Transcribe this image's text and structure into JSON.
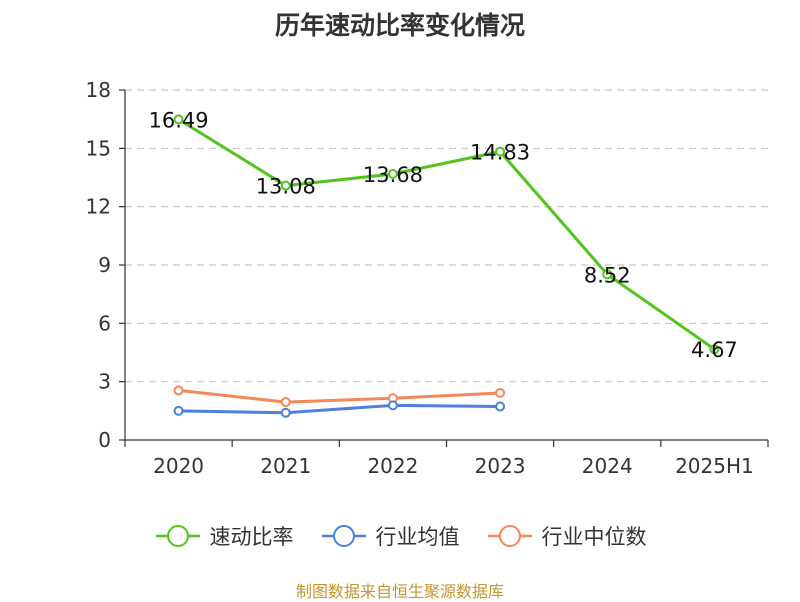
{
  "colors": {
    "speed_ratio": "#52c41a",
    "industry_avg": "#4f7fdc",
    "industry_median": "#f5885b",
    "grid": "#c8c8c8",
    "axis": "#333333",
    "source": "#c8962e"
  },
  "chart_data": {
    "type": "line",
    "title": "历年速动比率变化情况",
    "categories": [
      "2020",
      "2021",
      "2022",
      "2023",
      "2024",
      "2025H1"
    ],
    "ylim": [
      0,
      18
    ],
    "yticks": [
      0,
      3,
      6,
      9,
      12,
      15,
      18
    ],
    "grid": true,
    "legend_position": "bottom",
    "series": [
      {
        "key": "speed_ratio",
        "name": "速动比率",
        "values": [
          16.49,
          13.08,
          13.68,
          14.83,
          8.52,
          4.67
        ],
        "labels": [
          "16.49",
          "13.08",
          "13.68",
          "14.83",
          "8.52",
          "4.67"
        ]
      },
      {
        "key": "industry_avg",
        "name": "行业均值",
        "values": [
          1.5,
          1.4,
          1.78,
          1.72,
          null,
          null
        ]
      },
      {
        "key": "industry_median",
        "name": "行业中位数",
        "values": [
          2.55,
          1.95,
          2.15,
          2.42,
          null,
          null
        ]
      }
    ]
  },
  "source": "制图数据来自恒生聚源数据库"
}
